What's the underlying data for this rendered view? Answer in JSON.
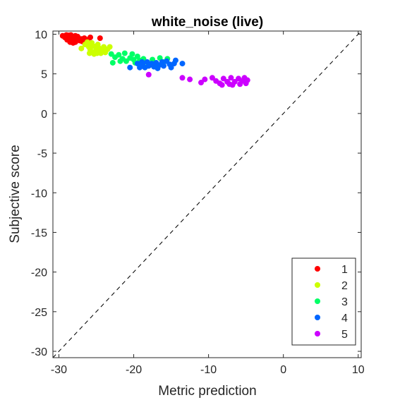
{
  "chart_data": {
    "type": "scatter",
    "title": "white_noise (live)",
    "xlabel": "Metric prediction",
    "ylabel": "Subjective score",
    "xlim": [
      -30.8,
      10.4
    ],
    "ylim": [
      -30.8,
      10.4
    ],
    "xticks": [
      -30,
      -20,
      -10,
      0,
      10
    ],
    "yticks": [
      10,
      5,
      0,
      -5,
      -10,
      -15,
      -20,
      -25,
      -30
    ],
    "grid": false,
    "reference_line": "y = x (dashed)",
    "legend_position": "bottom-right",
    "series": [
      {
        "name": "1",
        "color": "#ff0000",
        "points": [
          [
            -29.5,
            9.8
          ],
          [
            -29.2,
            9.6
          ],
          [
            -29.0,
            9.9
          ],
          [
            -28.8,
            9.5
          ],
          [
            -28.6,
            9.7
          ],
          [
            -28.4,
            9.9
          ],
          [
            -28.2,
            9.4
          ],
          [
            -28.0,
            9.6
          ],
          [
            -27.8,
            9.8
          ],
          [
            -27.6,
            9.3
          ],
          [
            -27.4,
            9.5
          ],
          [
            -27.2,
            9.2
          ],
          [
            -28.9,
            9.3
          ],
          [
            -28.5,
            9.0
          ],
          [
            -28.1,
            8.9
          ],
          [
            -27.8,
            9.0
          ],
          [
            -27.5,
            9.7
          ],
          [
            -27.0,
            9.4
          ],
          [
            -26.6,
            9.5
          ],
          [
            -26.2,
            9.3
          ],
          [
            -25.8,
            9.6
          ],
          [
            -28.3,
            9.75
          ],
          [
            -27.9,
            9.2
          ],
          [
            -29.1,
            9.75
          ],
          [
            -28.7,
            9.85
          ],
          [
            -26.9,
            9.1
          ],
          [
            -24.5,
            9.5
          ]
        ]
      },
      {
        "name": "2",
        "color": "#ccff00",
        "points": [
          [
            -27.0,
            8.2
          ],
          [
            -26.5,
            8.7
          ],
          [
            -26.2,
            9.0
          ],
          [
            -26.0,
            8.4
          ],
          [
            -25.8,
            8.0
          ],
          [
            -25.6,
            8.9
          ],
          [
            -25.4,
            8.5
          ],
          [
            -25.2,
            7.8
          ],
          [
            -25.0,
            8.3
          ],
          [
            -24.8,
            8.7
          ],
          [
            -24.6,
            8.1
          ],
          [
            -24.4,
            7.6
          ],
          [
            -24.2,
            8.0
          ],
          [
            -24.0,
            8.4
          ],
          [
            -23.8,
            7.7
          ],
          [
            -23.5,
            8.1
          ],
          [
            -23.2,
            8.4
          ],
          [
            -25.9,
            7.6
          ],
          [
            -25.3,
            7.5
          ],
          [
            -24.9,
            7.6
          ],
          [
            -25.7,
            8.6
          ],
          [
            -24.7,
            8.3
          ]
        ]
      },
      {
        "name": "3",
        "color": "#00ff66",
        "points": [
          [
            -23.0,
            7.5
          ],
          [
            -22.5,
            7.1
          ],
          [
            -22.0,
            7.4
          ],
          [
            -21.5,
            6.9
          ],
          [
            -21.2,
            7.6
          ],
          [
            -21.0,
            6.6
          ],
          [
            -20.5,
            7.0
          ],
          [
            -20.2,
            7.5
          ],
          [
            -20.0,
            6.8
          ],
          [
            -19.8,
            6.4
          ],
          [
            -19.5,
            7.2
          ],
          [
            -19.2,
            6.7
          ],
          [
            -19.0,
            6.3
          ],
          [
            -18.7,
            6.9
          ],
          [
            -18.3,
            6.5
          ],
          [
            -18.0,
            6.1
          ],
          [
            -17.5,
            6.8
          ],
          [
            -17.0,
            6.3
          ],
          [
            -16.5,
            7.0
          ],
          [
            -16.0,
            6.5
          ],
          [
            -15.5,
            6.9
          ],
          [
            -22.8,
            6.4
          ],
          [
            -21.8,
            6.6
          ]
        ]
      },
      {
        "name": "4",
        "color": "#0066ff",
        "points": [
          [
            -20.5,
            5.8
          ],
          [
            -19.5,
            6.3
          ],
          [
            -19.2,
            5.8
          ],
          [
            -18.8,
            6.2
          ],
          [
            -18.5,
            5.8
          ],
          [
            -18.2,
            6.5
          ],
          [
            -18.0,
            6.0
          ],
          [
            -17.6,
            6.3
          ],
          [
            -17.3,
            5.9
          ],
          [
            -17.0,
            6.4
          ],
          [
            -16.6,
            6.1
          ],
          [
            -16.2,
            6.5
          ],
          [
            -16.0,
            6.0
          ],
          [
            -15.6,
            6.6
          ],
          [
            -15.2,
            6.2
          ],
          [
            -15.0,
            5.8
          ],
          [
            -14.6,
            6.3
          ],
          [
            -14.4,
            6.7
          ],
          [
            -13.5,
            6.3
          ],
          [
            -16.8,
            5.7
          ],
          [
            -18.9,
            6.5
          ]
        ]
      },
      {
        "name": "5",
        "color": "#cc00ff",
        "points": [
          [
            -18.0,
            4.9
          ],
          [
            -13.5,
            4.5
          ],
          [
            -12.5,
            4.3
          ],
          [
            -11.0,
            3.9
          ],
          [
            -10.5,
            4.3
          ],
          [
            -9.5,
            4.5
          ],
          [
            -9.0,
            4.1
          ],
          [
            -8.5,
            3.8
          ],
          [
            -8.0,
            4.4
          ],
          [
            -7.5,
            4.0
          ],
          [
            -7.2,
            3.7
          ],
          [
            -7.0,
            4.5
          ],
          [
            -6.5,
            4.0
          ],
          [
            -6.0,
            4.4
          ],
          [
            -5.8,
            3.7
          ],
          [
            -5.5,
            4.1
          ],
          [
            -5.2,
            4.5
          ],
          [
            -5.0,
            3.8
          ],
          [
            -4.8,
            4.2
          ],
          [
            -6.8,
            3.6
          ],
          [
            -8.2,
            3.6
          ]
        ]
      }
    ]
  }
}
